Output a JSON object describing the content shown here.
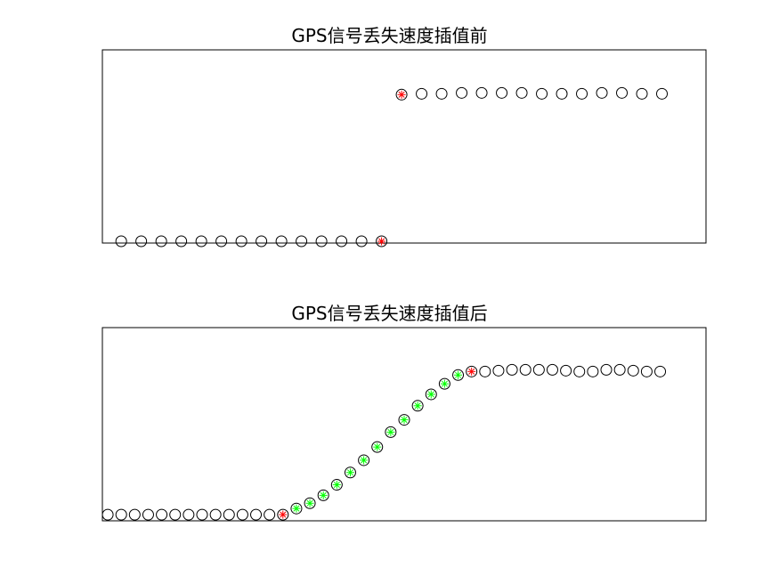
{
  "chart_data": [
    {
      "type": "scatter",
      "title": "GPS信号丢失速度插值前",
      "xlabel": "",
      "ylabel": "",
      "xlim": [
        0.06,
        30.2
      ],
      "ylim": [
        0,
        11
      ],
      "grid": false,
      "series": [
        {
          "role": "samples",
          "marker": "circle",
          "color": "#000000",
          "points": [
            [
              1,
              0.1
            ],
            [
              2,
              0.1
            ],
            [
              3,
              0.1
            ],
            [
              4,
              0.1
            ],
            [
              5,
              0.1
            ],
            [
              6,
              0.1
            ],
            [
              7,
              0.1
            ],
            [
              8,
              0.1
            ],
            [
              9,
              0.1
            ],
            [
              10,
              0.1
            ],
            [
              11,
              0.1
            ],
            [
              12,
              0.1
            ],
            [
              13,
              0.1
            ],
            [
              16,
              8.5
            ],
            [
              17,
              8.5
            ],
            [
              18,
              8.55
            ],
            [
              19,
              8.55
            ],
            [
              20,
              8.55
            ],
            [
              21,
              8.55
            ],
            [
              22,
              8.5
            ],
            [
              23,
              8.5
            ],
            [
              24,
              8.5
            ],
            [
              25,
              8.55
            ],
            [
              26,
              8.55
            ],
            [
              27,
              8.5
            ],
            [
              28,
              8.5
            ]
          ]
        },
        {
          "role": "gap-endpoints",
          "marker": "circle-star",
          "color": "#ff0000",
          "points": [
            [
              14,
              0.1
            ],
            [
              15,
              8.45
            ]
          ]
        }
      ]
    },
    {
      "type": "scatter",
      "title": "GPS信号丢失速度插值后",
      "xlabel": "",
      "ylabel": "",
      "xlim": [
        0.6,
        45.4
      ],
      "ylim": [
        0,
        11
      ],
      "grid": false,
      "series": [
        {
          "role": "samples",
          "marker": "circle",
          "color": "#000000",
          "points": [
            [
              1,
              0.35
            ],
            [
              2,
              0.35
            ],
            [
              3,
              0.35
            ],
            [
              4,
              0.35
            ],
            [
              5,
              0.35
            ],
            [
              6,
              0.35
            ],
            [
              7,
              0.35
            ],
            [
              8,
              0.35
            ],
            [
              9,
              0.35
            ],
            [
              10,
              0.35
            ],
            [
              11,
              0.35
            ],
            [
              12,
              0.35
            ],
            [
              13,
              0.35
            ],
            [
              29,
              8.5
            ],
            [
              30,
              8.55
            ],
            [
              31,
              8.6
            ],
            [
              32,
              8.6
            ],
            [
              33,
              8.6
            ],
            [
              34,
              8.6
            ],
            [
              35,
              8.55
            ],
            [
              36,
              8.5
            ],
            [
              37,
              8.5
            ],
            [
              38,
              8.6
            ],
            [
              39,
              8.6
            ],
            [
              40,
              8.55
            ],
            [
              41,
              8.5
            ],
            [
              42,
              8.5
            ]
          ]
        },
        {
          "role": "gap-endpoints",
          "marker": "circle-star",
          "color": "#ff0000",
          "points": [
            [
              14,
              0.35
            ],
            [
              28,
              8.5
            ]
          ]
        },
        {
          "role": "interpolated",
          "marker": "circle-star",
          "color": "#00ff00",
          "points": [
            [
              15,
              0.7
            ],
            [
              16,
              1.0
            ],
            [
              17,
              1.45
            ],
            [
              18,
              2.05
            ],
            [
              19,
              2.75
            ],
            [
              20,
              3.45
            ],
            [
              21,
              4.2
            ],
            [
              22,
              5.05
            ],
            [
              23,
              5.75
            ],
            [
              24,
              6.55
            ],
            [
              25,
              7.2
            ],
            [
              26,
              7.8
            ],
            [
              27,
              8.3
            ]
          ]
        }
      ]
    }
  ]
}
